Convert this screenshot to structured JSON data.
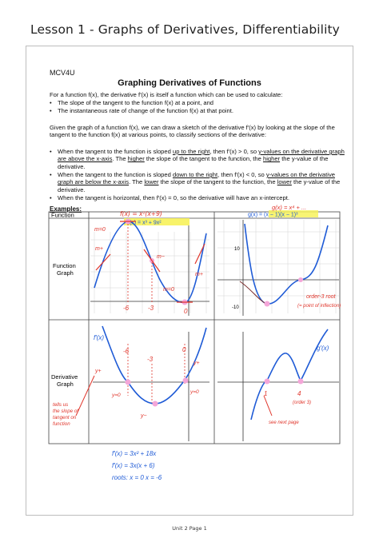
{
  "page": {
    "lesson_title": "Lesson 1 - Graphs of Derivatives, Differentiability",
    "footer": "Unit 2 Page 1"
  },
  "handout": {
    "course": "MCV4U",
    "heading": "Graphing Derivatives of Functions",
    "intro": "For a function f(x), the derivative f′(x) is itself a function which can be used to calculate:",
    "intro_bullets": [
      "The slope of the tangent to the function f(x) at a point, and",
      "The instantaneous rate of change of the function f(x) at that point."
    ],
    "given": "Given the graph of a function f(x), we can draw a sketch of the derivative f′(x) by looking at the slope of the tangent to the function f(x) at various points, to classify sections of the derivative:",
    "rules": [
      {
        "pre": "When the tangent to the function is sloped ",
        "u1": "up to the right",
        "mid": ", then f′(x) > 0, so ",
        "u2": "y-values on the derivative graph are above the x-axis",
        "mid2": ". The ",
        "u3": "higher",
        "post": " the slope of the tangent to the function, the ",
        "u4": "higher",
        "end": " the y-value of the derivative."
      },
      {
        "pre": "When the tangent to the function is sloped ",
        "u1": "down to the right",
        "mid": ", then f′(x) < 0, so ",
        "u2": "y-values on the derivative graph are below the x-axis",
        "mid2": ". The ",
        "u3": "lower",
        "post": " the slope of the tangent to the function, the ",
        "u4": "lower",
        "end": " the y-value of the derivative."
      }
    ],
    "horizontal_rule": "When the tangent is horizontal, then f′(x) = 0, so the derivative will have an x-intercept.",
    "examples_label": "Examples:"
  },
  "table": {
    "col_header": "Function",
    "row1_label": [
      "Function",
      "Graph"
    ],
    "row2_label": [
      "Derivative",
      "Graph"
    ],
    "ex1_printed_eq": "f(x) = x³ + 9x²",
    "ex2_printed_eq": "g(x) = (x − 1)(x − 1)³",
    "tick_10": "10",
    "tick_neg10": "-10"
  },
  "annotations": {
    "ex1_func": "f(x) = x²(x+9)",
    "ex2_func": "g(x) = x⁴ + ...",
    "m_pos": "m+",
    "m_neg": "m−",
    "m_zero": "m=0",
    "x_neg6": "-6",
    "x_neg3": "-3",
    "x_0": "0",
    "x_4": "4",
    "x_1": "1",
    "fprime": "f′(x)",
    "gprime": "g′(x)",
    "y_pos": "y+",
    "y_neg": "y−",
    "y_zero": "y=0",
    "order3": "order-3 root",
    "inflection": "(= point of inflection)",
    "tells_us": [
      "tells us",
      "the slope of",
      "tangent on",
      "function"
    ],
    "see_next": "see next page",
    "order_note": "(order 3)",
    "work": [
      "f′(x) = 3x² + 18x",
      "f′(x) = 3x(x + 6)",
      "roots: x = 0   x = -6"
    ]
  },
  "colors": {
    "ink_blue": "#1f5bd6",
    "ink_red": "#e0352b",
    "highlight_yellow": "#f7f25a",
    "highlight_pink": "#f4a6d8",
    "grid": "#a9a9a9"
  }
}
